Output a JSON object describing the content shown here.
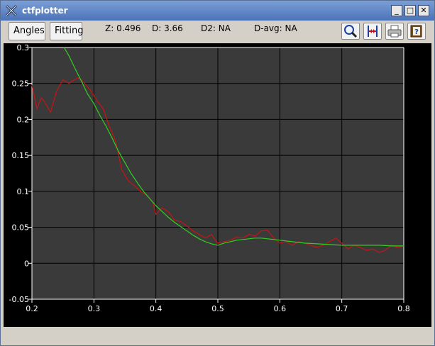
{
  "window": {
    "title": "ctfplotter"
  },
  "window_controls": {
    "minimize": "_",
    "maximize": "□",
    "close": "✕"
  },
  "toolbar": {
    "angles_label": "Angles",
    "fitting_label": "Fitting",
    "z_readout": "Z: 0.496",
    "d_readout": "D: 3.66",
    "d2_readout": "D2: NA",
    "davg_readout": "D-avg: NA",
    "tool_icons": [
      "zoom-icon",
      "range-icon",
      "print-icon",
      "help-icon"
    ]
  },
  "colors": {
    "plot_bg": "#3a3a3a",
    "grid": "#000000",
    "measured": "#c81414",
    "fit": "#30d020",
    "axes_text": "#ffffff"
  },
  "chart_data": {
    "type": "line",
    "xlim": [
      0.2,
      0.8
    ],
    "ylim": [
      -0.05,
      0.3
    ],
    "x_ticks": [
      0.2,
      0.3,
      0.4,
      0.5,
      0.6,
      0.7,
      0.8
    ],
    "x_tick_labels": [
      "0.2",
      "0.3",
      "0.4",
      "0.5",
      "0.6",
      "0.7",
      "0.8"
    ],
    "y_ticks": [
      -0.05,
      0,
      0.05,
      0.1,
      0.15,
      0.2,
      0.25,
      0.3
    ],
    "y_tick_labels": [
      "-0.05",
      "0",
      "0.05",
      "0.1",
      "0.15",
      "0.2",
      "0.25",
      "0.3"
    ],
    "grid": true,
    "series": [
      {
        "color": "#c81414",
        "points": [
          [
            0.2,
            0.248
          ],
          [
            0.208,
            0.215
          ],
          [
            0.215,
            0.23
          ],
          [
            0.22,
            0.225
          ],
          [
            0.23,
            0.21
          ],
          [
            0.24,
            0.24
          ],
          [
            0.25,
            0.255
          ],
          [
            0.26,
            0.25
          ],
          [
            0.268,
            0.255
          ],
          [
            0.275,
            0.258
          ],
          [
            0.285,
            0.25
          ],
          [
            0.295,
            0.24
          ],
          [
            0.305,
            0.226
          ],
          [
            0.315,
            0.215
          ],
          [
            0.325,
            0.19
          ],
          [
            0.335,
            0.17
          ],
          [
            0.345,
            0.13
          ],
          [
            0.355,
            0.115
          ],
          [
            0.365,
            0.108
          ],
          [
            0.375,
            0.1
          ],
          [
            0.385,
            0.095
          ],
          [
            0.395,
            0.085
          ],
          [
            0.4,
            0.068
          ],
          [
            0.41,
            0.077
          ],
          [
            0.42,
            0.072
          ],
          [
            0.43,
            0.06
          ],
          [
            0.44,
            0.058
          ],
          [
            0.45,
            0.052
          ],
          [
            0.46,
            0.045
          ],
          [
            0.47,
            0.04
          ],
          [
            0.48,
            0.035
          ],
          [
            0.49,
            0.04
          ],
          [
            0.495,
            0.033
          ],
          [
            0.5,
            0.028
          ],
          [
            0.51,
            0.03
          ],
          [
            0.52,
            0.032
          ],
          [
            0.53,
            0.036
          ],
          [
            0.54,
            0.035
          ],
          [
            0.55,
            0.04
          ],
          [
            0.56,
            0.038
          ],
          [
            0.57,
            0.045
          ],
          [
            0.58,
            0.046
          ],
          [
            0.59,
            0.035
          ],
          [
            0.6,
            0.028
          ],
          [
            0.61,
            0.03
          ],
          [
            0.62,
            0.025
          ],
          [
            0.63,
            0.03
          ],
          [
            0.64,
            0.028
          ],
          [
            0.65,
            0.025
          ],
          [
            0.66,
            0.022
          ],
          [
            0.67,
            0.025
          ],
          [
            0.68,
            0.03
          ],
          [
            0.69,
            0.035
          ],
          [
            0.7,
            0.028
          ],
          [
            0.71,
            0.02
          ],
          [
            0.72,
            0.025
          ],
          [
            0.73,
            0.022
          ],
          [
            0.74,
            0.018
          ],
          [
            0.75,
            0.02
          ],
          [
            0.76,
            0.015
          ],
          [
            0.77,
            0.018
          ],
          [
            0.78,
            0.025
          ],
          [
            0.79,
            0.022
          ],
          [
            0.8,
            0.024
          ]
        ]
      },
      {
        "color": "#30d020",
        "points": [
          [
            0.252,
            0.3
          ],
          [
            0.26,
            0.288
          ],
          [
            0.27,
            0.27
          ],
          [
            0.28,
            0.253
          ],
          [
            0.29,
            0.235
          ],
          [
            0.3,
            0.222
          ],
          [
            0.31,
            0.205
          ],
          [
            0.32,
            0.19
          ],
          [
            0.33,
            0.173
          ],
          [
            0.34,
            0.155
          ],
          [
            0.35,
            0.14
          ],
          [
            0.36,
            0.125
          ],
          [
            0.37,
            0.112
          ],
          [
            0.38,
            0.1
          ],
          [
            0.39,
            0.09
          ],
          [
            0.4,
            0.08
          ],
          [
            0.41,
            0.072
          ],
          [
            0.42,
            0.064
          ],
          [
            0.43,
            0.057
          ],
          [
            0.44,
            0.051
          ],
          [
            0.45,
            0.045
          ],
          [
            0.46,
            0.039
          ],
          [
            0.47,
            0.034
          ],
          [
            0.48,
            0.03
          ],
          [
            0.49,
            0.027
          ],
          [
            0.5,
            0.025
          ],
          [
            0.51,
            0.028
          ],
          [
            0.52,
            0.03
          ],
          [
            0.53,
            0.032
          ],
          [
            0.54,
            0.033
          ],
          [
            0.55,
            0.034
          ],
          [
            0.56,
            0.035
          ],
          [
            0.57,
            0.035
          ],
          [
            0.58,
            0.034
          ],
          [
            0.6,
            0.032
          ],
          [
            0.62,
            0.03
          ],
          [
            0.64,
            0.028
          ],
          [
            0.66,
            0.027
          ],
          [
            0.68,
            0.026
          ],
          [
            0.7,
            0.025
          ],
          [
            0.72,
            0.025
          ],
          [
            0.74,
            0.025
          ],
          [
            0.76,
            0.025
          ],
          [
            0.78,
            0.024
          ],
          [
            0.8,
            0.024
          ]
        ]
      }
    ]
  }
}
